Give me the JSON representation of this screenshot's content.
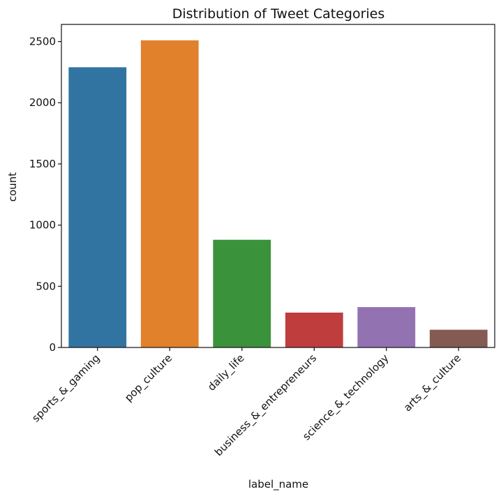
{
  "chart_data": {
    "type": "bar",
    "title": "Distribution of Tweet Categories",
    "xlabel": "label_name",
    "ylabel": "count",
    "categories": [
      "sports_&_gaming",
      "pop_culture",
      "daily_life",
      "business_&_entrepreneurs",
      "science_&_technology",
      "arts_&_culture"
    ],
    "values": [
      2290,
      2510,
      880,
      285,
      330,
      145
    ],
    "colors": [
      "#3274a1",
      "#e1812c",
      "#3a923a",
      "#c03d3e",
      "#9372b2",
      "#845b53"
    ],
    "yticks": [
      0,
      500,
      1000,
      1500,
      2000,
      2500
    ],
    "ylim": [
      0,
      2640
    ],
    "grid": false,
    "legend": "none"
  }
}
